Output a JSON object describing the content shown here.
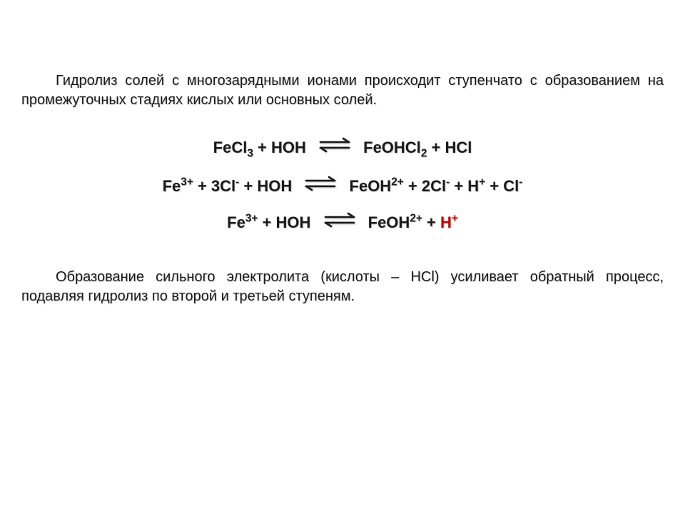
{
  "text_color": "#1a1a1a",
  "accent_color": "#c00000",
  "background": "#ffffff",
  "paragraph1": "Гидролиз солей с многозарядными ионами происходит ступенчато с образованием на промежуточных стадиях кислых или основных солей.",
  "equations": {
    "eq1": {
      "left": "FeCl<sub>3</sub> + HOH",
      "right": "FeOHCl<sub>2</sub> + HCl"
    },
    "eq2": {
      "left": "Fe<sup>3+</sup> + 3Cl<sup>-</sup> + HOH",
      "right": "FeOH<sup>2+</sup> + 2Cl<sup>-</sup> + H<sup>+</sup> + Cl<sup>-</sup>"
    },
    "eq3": {
      "left": "Fe<sup>3+</sup> + HOH",
      "right": "FeOH<sup>2+</sup> + <span class=\"accent\">H<sup>+</sup></span>"
    }
  },
  "paragraph2": "Образование сильного электролита (кислоты – HCl) усиливает обратный процесс, подавляя гидролиз по второй и третьей ступеням.",
  "arrow": {
    "width": 48,
    "height": 22,
    "stroke": "#1a1a1a",
    "stroke_width": 2.6
  }
}
